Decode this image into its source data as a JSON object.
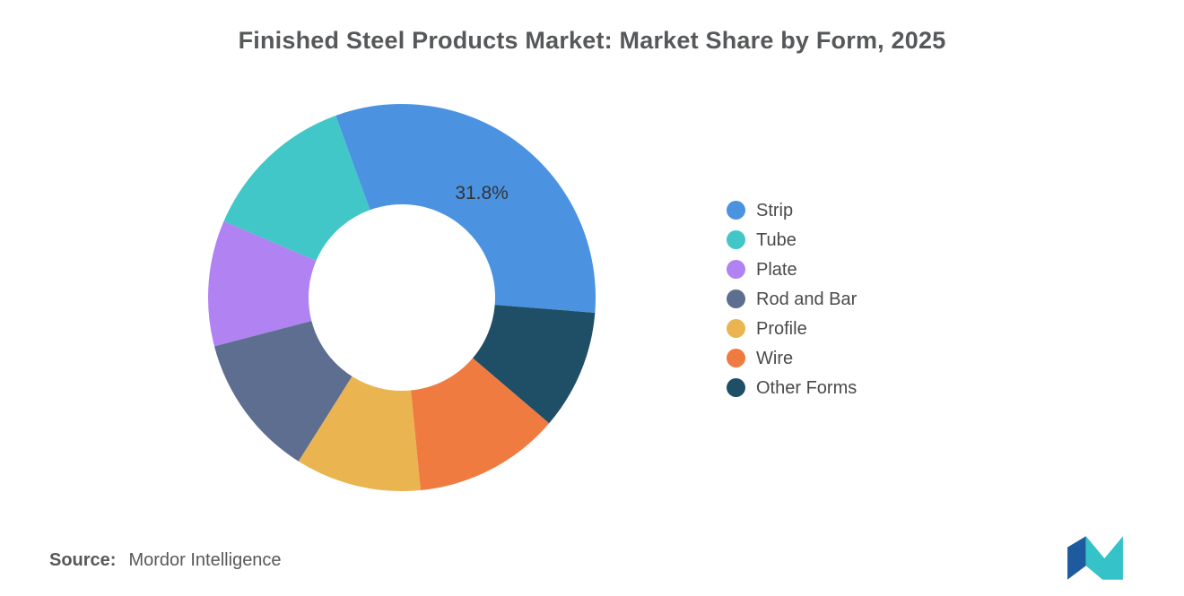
{
  "title": "Finished Steel Products Market: Market Share by Form, 2025",
  "chart_data": {
    "type": "pie",
    "subtype": "donut",
    "title": "Finished Steel Products Market: Market Share by Form, 2025",
    "categories": [
      "Strip",
      "Tube",
      "Plate",
      "Rod and Bar",
      "Profile",
      "Wire",
      "Other Forms"
    ],
    "values": [
      31.8,
      13.0,
      10.5,
      12.0,
      10.5,
      12.2,
      10.0
    ],
    "unit": "%",
    "colors": [
      "#4B93E1",
      "#41C7C7",
      "#B182F2",
      "#5E6E90",
      "#EAB451",
      "#F07B41",
      "#1F4F66"
    ],
    "slice_labels": [
      {
        "category": "Strip",
        "text": "31.8%"
      }
    ],
    "legend_position": "right",
    "start_angle_deg": 94.5,
    "direction": "counterclockwise",
    "inner_radius_ratio": 0.48
  },
  "legend": {
    "items": [
      {
        "label": "Strip",
        "color": "#4B93E1"
      },
      {
        "label": "Tube",
        "color": "#41C7C7"
      },
      {
        "label": "Plate",
        "color": "#B182F2"
      },
      {
        "label": "Rod and Bar",
        "color": "#5E6E90"
      },
      {
        "label": "Profile",
        "color": "#EAB451"
      },
      {
        "label": "Wire",
        "color": "#F07B41"
      },
      {
        "label": "Other Forms",
        "color": "#1F4F66"
      }
    ]
  },
  "source": {
    "prefix": "Source:",
    "text": "Mordor Intelligence"
  },
  "logo": {
    "name": "Mordor Intelligence logo mark",
    "colors": [
      "#1E5B9E",
      "#35C2C8"
    ]
  }
}
